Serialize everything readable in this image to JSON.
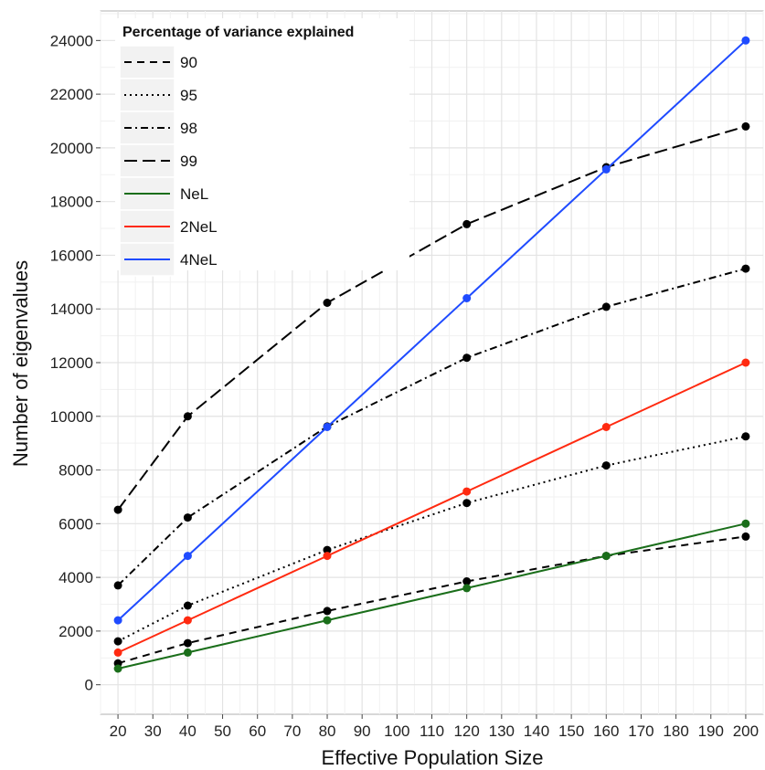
{
  "chart_data": {
    "type": "line",
    "title": "",
    "xlabel": "Effective Population Size",
    "ylabel": "Number of eigenvalues",
    "xlim": [
      15,
      205
    ],
    "ylim": [
      -1100,
      25100
    ],
    "xticks": [
      20,
      30,
      40,
      50,
      60,
      70,
      80,
      90,
      100,
      110,
      120,
      130,
      140,
      150,
      160,
      170,
      180,
      190,
      200
    ],
    "yticks": [
      0,
      2000,
      4000,
      6000,
      8000,
      10000,
      12000,
      14000,
      16000,
      18000,
      20000,
      22000,
      24000
    ],
    "grid": true,
    "legend": {
      "title": "Percentage of variance explained",
      "position": "top-left"
    },
    "x": [
      20,
      40,
      80,
      120,
      160,
      200
    ],
    "series": [
      {
        "name": "90",
        "dash": "8,6",
        "color": "#000000",
        "values": [
          800,
          1550,
          2750,
          3850,
          4800,
          5520
        ]
      },
      {
        "name": "95",
        "dash": "2,4",
        "color": "#000000",
        "values": [
          1620,
          2950,
          5020,
          6770,
          8170,
          9250
        ]
      },
      {
        "name": "98",
        "dash": "8,4,2,4",
        "color": "#000000",
        "values": [
          3700,
          6230,
          9620,
          12180,
          14080,
          15500
        ]
      },
      {
        "name": "99",
        "dash": "14,6",
        "color": "#000000",
        "values": [
          6520,
          10000,
          14230,
          17160,
          19280,
          20800
        ]
      },
      {
        "name": "NeL",
        "dash": "",
        "color": "#1a6e1a",
        "values": [
          600,
          1200,
          2400,
          3600,
          4800,
          6000
        ]
      },
      {
        "name": "2NeL",
        "dash": "",
        "color": "#ff2a10",
        "values": [
          1200,
          2400,
          4800,
          7200,
          9600,
          12000
        ]
      },
      {
        "name": "4NeL",
        "dash": "",
        "color": "#1f4bff",
        "values": [
          2400,
          4800,
          9600,
          14400,
          19200,
          24000
        ]
      }
    ]
  }
}
